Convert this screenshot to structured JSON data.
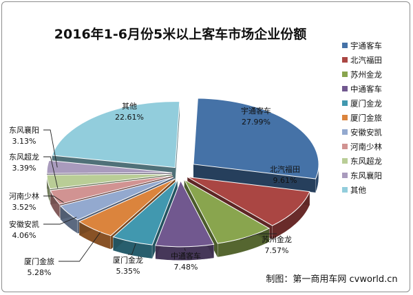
{
  "chart_data": {
    "type": "pie",
    "title": "2016年1-6月份5米以上客车市场企业份额",
    "slices": [
      {
        "name": "宇通客车",
        "value": 27.99,
        "label": "27.99%",
        "color": "#4572a7"
      },
      {
        "name": "北汽福田",
        "value": 9.61,
        "label": "9.61%",
        "color": "#aa4643"
      },
      {
        "name": "苏州金龙",
        "value": 7.57,
        "label": "7.57%",
        "color": "#89a54e"
      },
      {
        "name": "中通客车",
        "value": 7.48,
        "label": "7.48%",
        "color": "#71588f"
      },
      {
        "name": "厦门金龙",
        "value": 5.35,
        "label": "5.35%",
        "color": "#4198af"
      },
      {
        "name": "厦门金旅",
        "value": 5.28,
        "label": "5.28%",
        "color": "#db843d"
      },
      {
        "name": "安徽安凯",
        "value": 4.06,
        "label": "4.06%",
        "color": "#93a9cf"
      },
      {
        "name": "河南少林",
        "value": 3.52,
        "label": "3.52%",
        "color": "#d19392"
      },
      {
        "name": "东风超龙",
        "value": 3.39,
        "label": "3.39%",
        "color": "#b9cd96"
      },
      {
        "name": "东风襄阳",
        "value": 3.13,
        "label": "3.13%",
        "color": "#a99bbd"
      },
      {
        "name": "其他",
        "value": 22.61,
        "label": "22.61%",
        "color": "#92cddc"
      }
    ],
    "legend_position": "right"
  },
  "credit": "制图：第一商用车网 cvworld.cn"
}
